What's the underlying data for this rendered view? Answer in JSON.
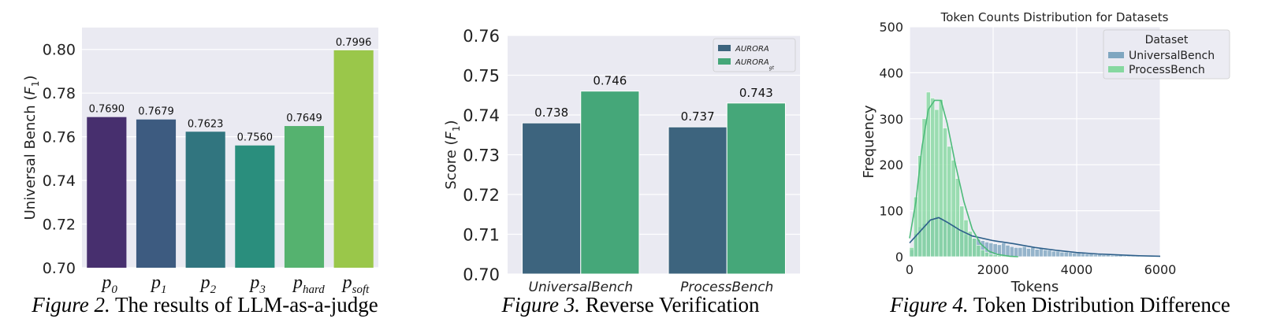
{
  "figures": [
    {
      "caption_number": "Figure 2.",
      "caption_text": "The results of LLM-as-a-judge"
    },
    {
      "caption_number": "Figure 3.",
      "caption_text": "Reverse Verification"
    },
    {
      "caption_number": "Figure 4.",
      "caption_text": "Token Distribution Difference"
    }
  ],
  "chart_data": [
    {
      "type": "bar",
      "title": "",
      "xlabel": "",
      "ylabel": "Universal Bench (F1)",
      "ylabel_parts": [
        "Universal Bench (",
        "F",
        "1",
        ")"
      ],
      "categories": [
        "p0",
        "p1",
        "p2",
        "p3",
        "phard",
        "psoft"
      ],
      "category_labels": [
        {
          "base": "p",
          "sub": "0"
        },
        {
          "base": "p",
          "sub": "1"
        },
        {
          "base": "p",
          "sub": "2"
        },
        {
          "base": "p",
          "sub": "3"
        },
        {
          "base": "p",
          "sub": "hard"
        },
        {
          "base": "p",
          "sub": "soft"
        }
      ],
      "values": [
        0.769,
        0.7679,
        0.7623,
        0.756,
        0.7649,
        0.7996
      ],
      "value_labels": [
        "0.7690",
        "0.7679",
        "0.7623",
        "0.7560",
        "0.7649",
        "0.7996"
      ],
      "colors": [
        "#472F6E",
        "#3D5B80",
        "#31757F",
        "#2A8E7D",
        "#55B26F",
        "#9AC74A"
      ],
      "ylim": [
        0.7,
        0.81
      ],
      "yticks": [
        0.7,
        0.72,
        0.74,
        0.76,
        0.78,
        0.8
      ],
      "ytick_labels": [
        "0.70",
        "0.72",
        "0.74",
        "0.76",
        "0.78",
        "0.80"
      ],
      "grid": true,
      "background": "#EAEAF2"
    },
    {
      "type": "bar",
      "title": "",
      "xlabel": "",
      "ylabel": "Score (F1)",
      "ylabel_parts": [
        "Score (",
        "F",
        "1",
        ")"
      ],
      "categories": [
        "UniversalBench",
        "ProcessBench"
      ],
      "series": [
        {
          "name": "AURORA",
          "name_base": "AURORA",
          "name_sub": "",
          "values": [
            0.738,
            0.737
          ],
          "value_labels": [
            "0.738",
            "0.737"
          ],
          "color": "#3D647E"
        },
        {
          "name": "AURORAgt",
          "name_base": "AURORA",
          "name_sub": "gt",
          "values": [
            0.746,
            0.743
          ],
          "value_labels": [
            "0.746",
            "0.743"
          ],
          "color": "#45A779"
        }
      ],
      "ylim": [
        0.7,
        0.76
      ],
      "yticks": [
        0.7,
        0.71,
        0.72,
        0.73,
        0.74,
        0.75,
        0.76
      ],
      "ytick_labels": [
        "0.70",
        "0.71",
        "0.72",
        "0.73",
        "0.74",
        "0.75",
        "0.76"
      ],
      "legend": "top-right",
      "grid": true,
      "background": "#EAEAF2"
    },
    {
      "type": "histogram",
      "title": "Token Counts Distribution for Datasets",
      "xlabel": "Tokens",
      "ylabel": "Frequency",
      "xlim": [
        0,
        6000
      ],
      "ylim": [
        0,
        500
      ],
      "xticks": [
        0,
        2000,
        4000,
        6000
      ],
      "xtick_labels": [
        "0",
        "2000",
        "4000",
        "6000"
      ],
      "yticks": [
        0,
        100,
        200,
        300,
        400,
        500
      ],
      "ytick_labels": [
        "0",
        "100",
        "200",
        "300",
        "400",
        "500"
      ],
      "legend_title": "Dataset",
      "legend": "top-right",
      "grid": true,
      "background": "#EAEAF2",
      "bin_width": 100,
      "series": [
        {
          "name": "UniversalBench",
          "color": "#7FA6C0",
          "line_color": "#2D5F8A",
          "bin_starts": [
            0,
            100,
            200,
            300,
            400,
            500,
            600,
            700,
            800,
            900,
            1000,
            1100,
            1200,
            1300,
            1400,
            1500,
            1600,
            1700,
            1800,
            1900,
            2000,
            2100,
            2200,
            2300,
            2400,
            2500,
            2600,
            2700,
            2800,
            2900,
            3000,
            3100,
            3200,
            3300,
            3400,
            3500,
            3600,
            3700,
            3800,
            3900,
            4000,
            4100,
            4200,
            4300,
            4400,
            4500,
            4600,
            4700,
            4800,
            4900,
            5000,
            5100,
            5200,
            5300,
            5400,
            5500,
            5600
          ],
          "counts": [
            15,
            50,
            65,
            72,
            80,
            82,
            88,
            85,
            80,
            75,
            70,
            60,
            55,
            48,
            45,
            40,
            38,
            35,
            32,
            30,
            28,
            26,
            30,
            25,
            22,
            20,
            20,
            22,
            18,
            20,
            16,
            18,
            15,
            14,
            12,
            12,
            10,
            10,
            9,
            8,
            8,
            7,
            6,
            6,
            5,
            5,
            4,
            4,
            3,
            3,
            3,
            2,
            2,
            2,
            2,
            1,
            1
          ],
          "kde": [
            [
              0,
              30
            ],
            [
              250,
              55
            ],
            [
              500,
              80
            ],
            [
              700,
              85
            ],
            [
              900,
              75
            ],
            [
              1200,
              58
            ],
            [
              1500,
              45
            ],
            [
              2000,
              35
            ],
            [
              2500,
              28
            ],
            [
              3000,
              20
            ],
            [
              3500,
              14
            ],
            [
              4000,
              9
            ],
            [
              4500,
              6
            ],
            [
              5000,
              4
            ],
            [
              5500,
              2
            ],
            [
              6000,
              1
            ]
          ]
        },
        {
          "name": "ProcessBench",
          "color": "#86D8A0",
          "line_color": "#4DBB7A",
          "bin_starts": [
            0,
            100,
            200,
            300,
            400,
            500,
            600,
            700,
            800,
            900,
            1000,
            1100,
            1200,
            1300,
            1400,
            1500,
            1600,
            1700,
            1800,
            1900,
            2000,
            2100,
            2200,
            2300,
            2400,
            2500
          ],
          "counts": [
            20,
            130,
            220,
            300,
            358,
            345,
            320,
            342,
            280,
            240,
            210,
            170,
            110,
            80,
            55,
            40,
            25,
            15,
            10,
            6,
            4,
            3,
            2,
            2,
            1,
            1
          ],
          "kde": [
            [
              0,
              40
            ],
            [
              150,
              120
            ],
            [
              300,
              240
            ],
            [
              450,
              320
            ],
            [
              600,
              340
            ],
            [
              750,
              340
            ],
            [
              900,
              290
            ],
            [
              1100,
              200
            ],
            [
              1300,
              120
            ],
            [
              1500,
              60
            ],
            [
              1700,
              28
            ],
            [
              1900,
              12
            ],
            [
              2100,
              5
            ],
            [
              2400,
              1
            ],
            [
              2600,
              0
            ]
          ]
        }
      ]
    }
  ]
}
